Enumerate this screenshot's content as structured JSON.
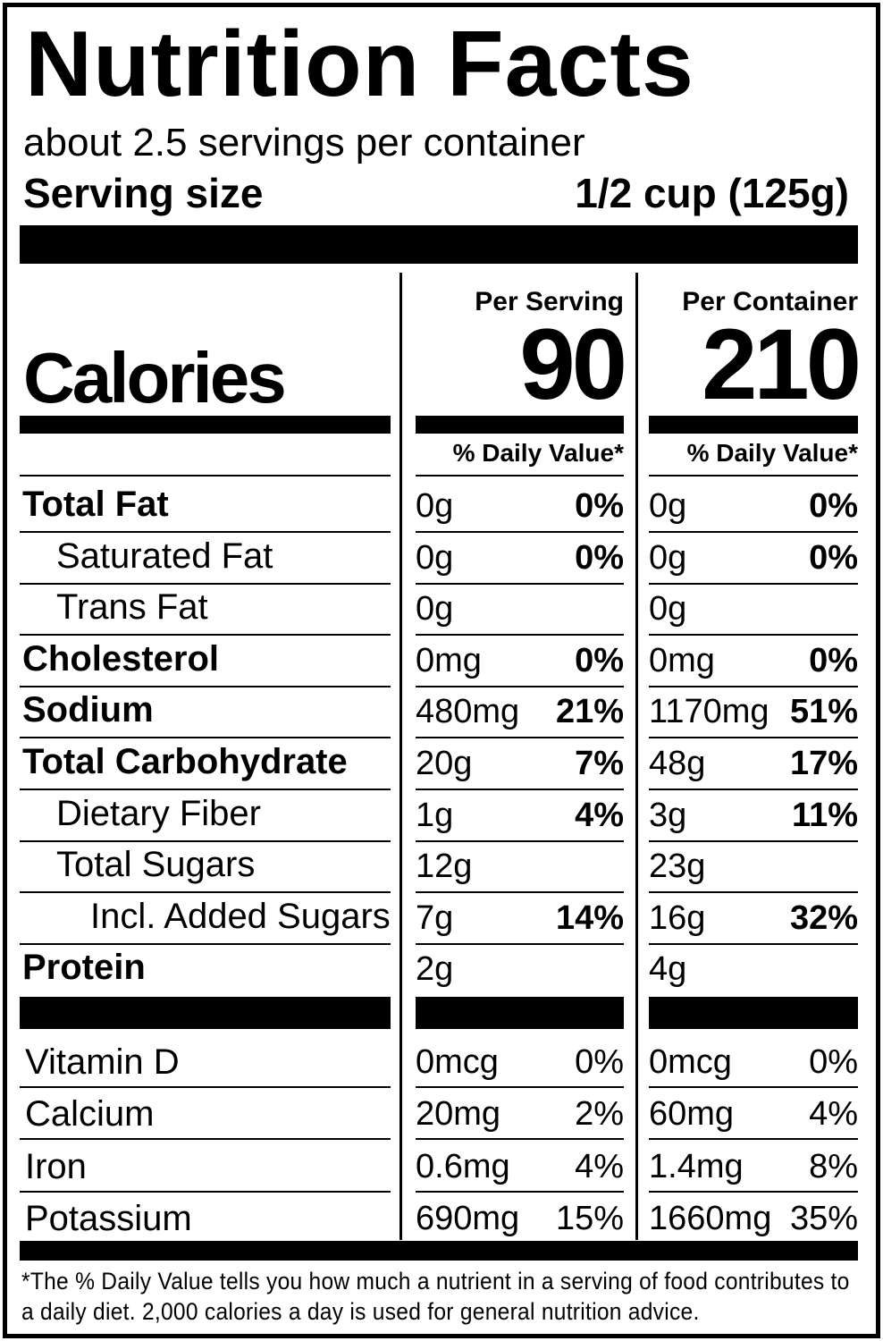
{
  "title": "Nutrition Facts",
  "servings": "about 2.5 servings per container",
  "serving_size": {
    "label": "Serving size",
    "value": "1/2 cup (125g)"
  },
  "calories_label": "Calories",
  "columns": [
    {
      "header": "Per Serving",
      "calories": 90,
      "dv_header": "% Daily Value*"
    },
    {
      "header": "Per Container",
      "calories": 210,
      "dv_header": "% Daily Value*"
    }
  ],
  "nutrients": [
    {
      "name": "Total Fat",
      "bold": true,
      "indent": 0,
      "values": [
        {
          "amount": "0g",
          "dv": "0%"
        },
        {
          "amount": "0g",
          "dv": "0%"
        }
      ]
    },
    {
      "name": "Saturated Fat",
      "bold": false,
      "indent": 1,
      "values": [
        {
          "amount": "0g",
          "dv": "0%"
        },
        {
          "amount": "0g",
          "dv": "0%"
        }
      ]
    },
    {
      "name": "Trans Fat",
      "bold": false,
      "indent": 1,
      "values": [
        {
          "amount": "0g"
        },
        {
          "amount": "0g"
        }
      ]
    },
    {
      "name": "Cholesterol",
      "bold": true,
      "indent": 0,
      "values": [
        {
          "amount": "0mg",
          "dv": "0%"
        },
        {
          "amount": "0mg",
          "dv": "0%"
        }
      ]
    },
    {
      "name": "Sodium",
      "bold": true,
      "indent": 0,
      "values": [
        {
          "amount": "480mg",
          "dv": "21%"
        },
        {
          "amount": "1170mg",
          "dv": "51%"
        }
      ]
    },
    {
      "name": "Total Carbohydrate",
      "bold": true,
      "indent": 0,
      "values": [
        {
          "amount": "20g",
          "dv": "7%"
        },
        {
          "amount": "48g",
          "dv": "17%"
        }
      ]
    },
    {
      "name": "Dietary Fiber",
      "bold": false,
      "indent": 1,
      "values": [
        {
          "amount": "1g",
          "dv": "4%"
        },
        {
          "amount": "3g",
          "dv": "11%"
        }
      ]
    },
    {
      "name": "Total Sugars",
      "bold": false,
      "indent": 1,
      "values": [
        {
          "amount": "12g"
        },
        {
          "amount": "23g"
        }
      ]
    },
    {
      "name": "Incl. Added Sugars",
      "bold": false,
      "indent": 2,
      "values": [
        {
          "amount": "7g",
          "dv": "14%"
        },
        {
          "amount": "16g",
          "dv": "32%"
        }
      ]
    },
    {
      "name": "Protein",
      "bold": true,
      "indent": 0,
      "values": [
        {
          "amount": "2g"
        },
        {
          "amount": "4g"
        }
      ]
    }
  ],
  "vitamins": [
    {
      "name": "Vitamin D",
      "values": [
        {
          "amount": "0mcg",
          "dv": "0%"
        },
        {
          "amount": "0mcg",
          "dv": "0%"
        }
      ]
    },
    {
      "name": "Calcium",
      "values": [
        {
          "amount": "20mg",
          "dv": "2%"
        },
        {
          "amount": "60mg",
          "dv": "4%"
        }
      ]
    },
    {
      "name": "Iron",
      "values": [
        {
          "amount": "0.6mg",
          "dv": "4%"
        },
        {
          "amount": "1.4mg",
          "dv": "8%"
        }
      ]
    },
    {
      "name": "Potassium",
      "values": [
        {
          "amount": "690mg",
          "dv": "15%"
        },
        {
          "amount": "1660mg",
          "dv": "35%"
        }
      ]
    }
  ],
  "footnote": "*The % Daily Value tells you how much a nutrient in a serving of food contributes to a daily diet. 2,000 calories a day is used for general nutrition advice."
}
